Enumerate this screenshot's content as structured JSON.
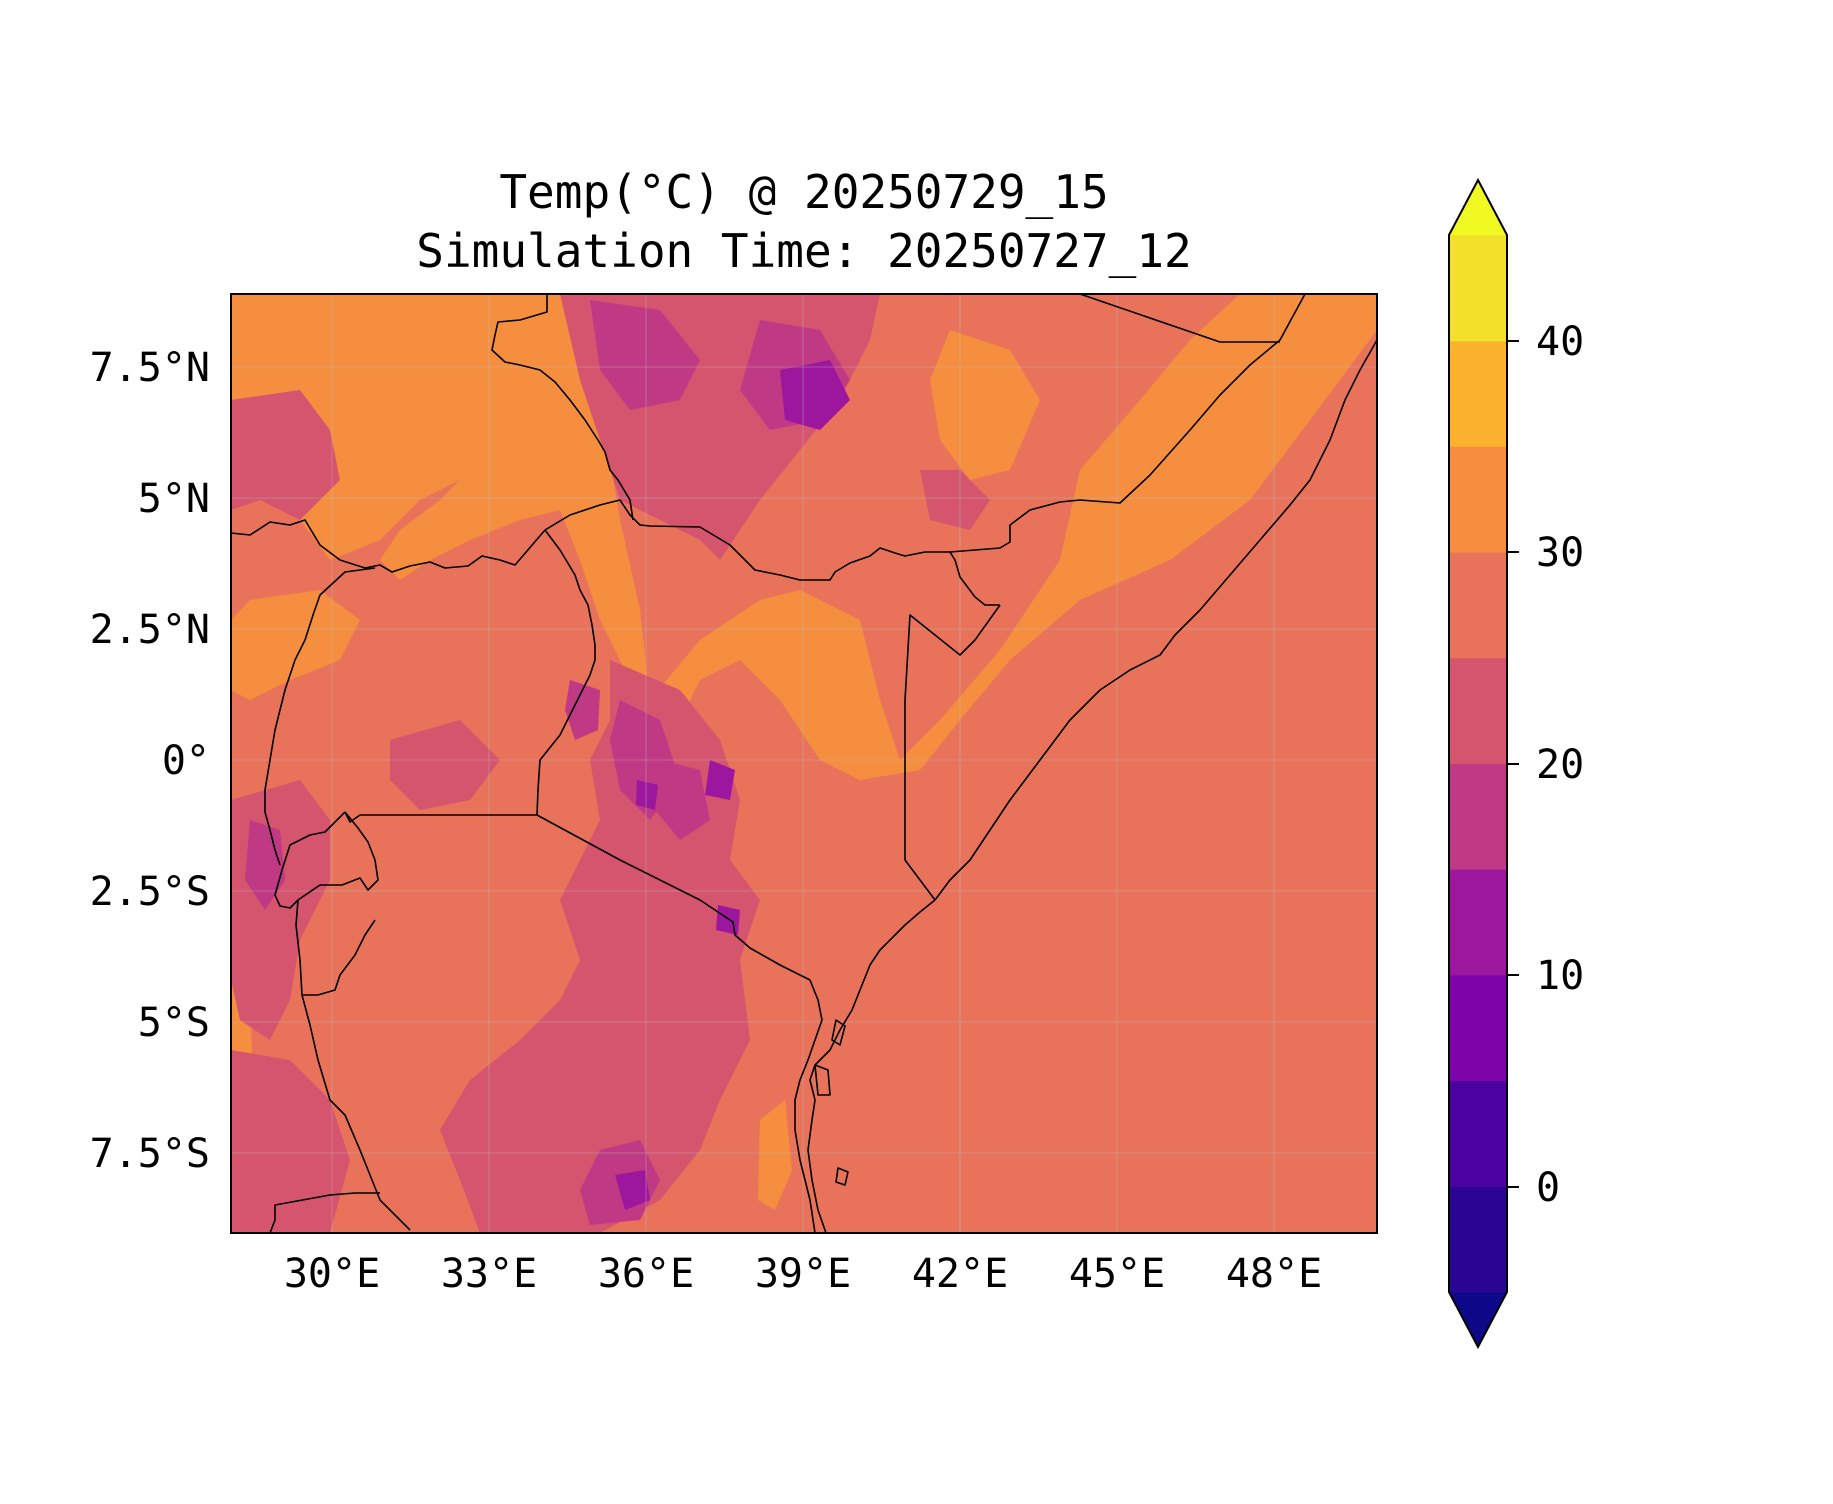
{
  "title": {
    "line1": "Temp(°C) @ 20250729_15",
    "line2": "Simulation Time: 20250727_12"
  },
  "map": {
    "lon_ticks": [
      "30°E",
      "33°E",
      "36°E",
      "39°E",
      "42°E",
      "45°E",
      "48°E"
    ],
    "lat_ticks": [
      "7.5°N",
      "5°N",
      "2.5°N",
      "0°",
      "2.5°S",
      "5°S",
      "7.5°S"
    ],
    "extent": {
      "lon_min": 28.1,
      "lon_max": 50.0,
      "lat_min": -9.0,
      "lat_max": 8.9
    },
    "gridlines": true
  },
  "colorbar": {
    "ticks": [
      "0",
      "10",
      "20",
      "30",
      "40"
    ],
    "levels": [
      -5,
      0,
      5,
      10,
      15,
      20,
      25,
      30,
      35,
      40,
      45
    ],
    "extend": "both",
    "colors": [
      "#0d0887",
      "#2a0593",
      "#4c02a1",
      "#7e03a8",
      "#9c179e",
      "#bf3984",
      "#d5546e",
      "#e8735a",
      "#f58f3f",
      "#fdb22f",
      "#f3e02b",
      "#f0f921"
    ]
  }
}
